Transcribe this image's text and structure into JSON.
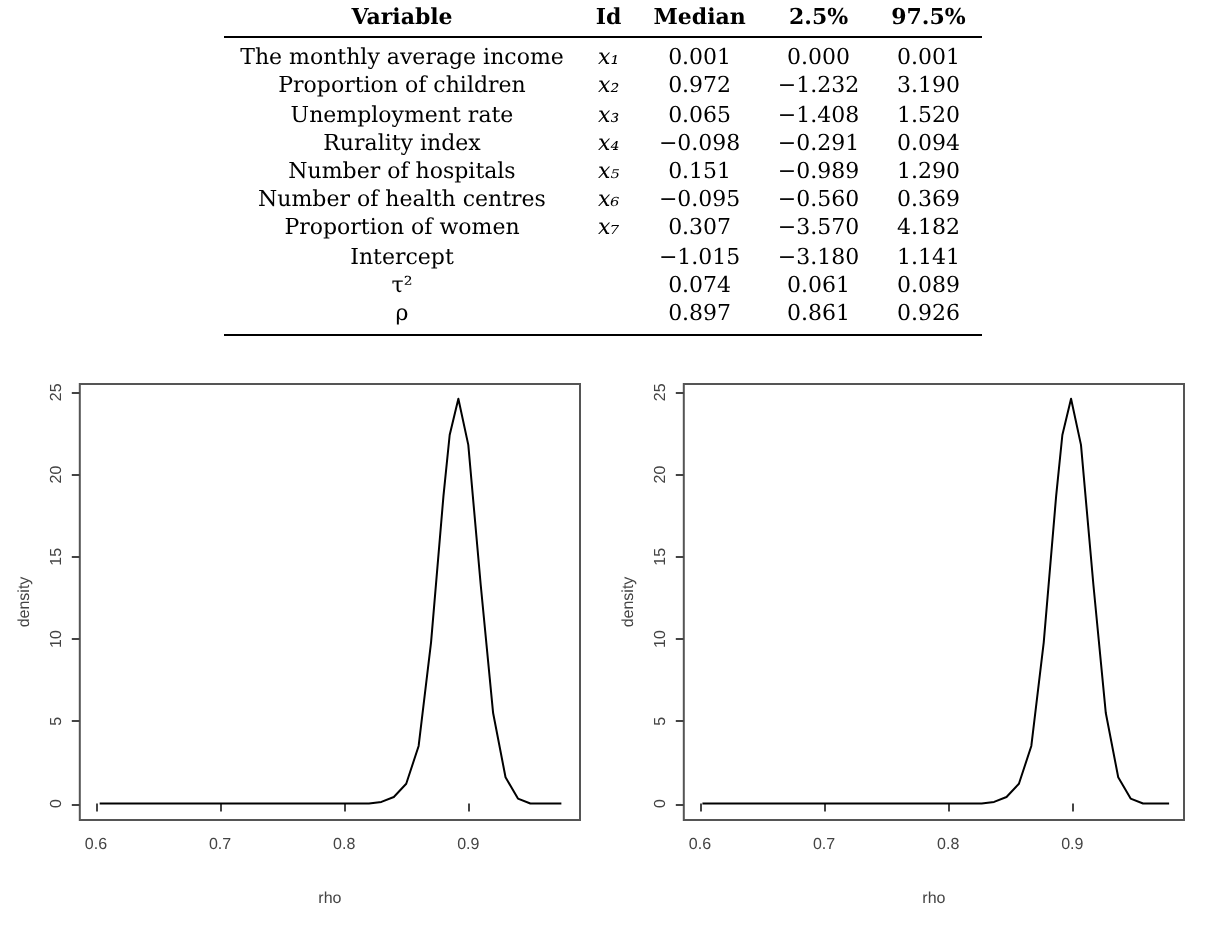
{
  "chart_data": [
    {
      "type": "other",
      "categories": [
        "Variable",
        "Id",
        "Median",
        "2.5%",
        "97.5%"
      ],
      "y_categories": [
        "The monthly average income",
        "Proportion of children",
        "Unemployment rate",
        "Rurality index",
        "Number of hospitals",
        "Number of health centres",
        "Proportion of women",
        "Intercept",
        "τ²",
        "ρ"
      ],
      "cell_labels": [
        [
          "x₁",
          "0.001",
          "0.000",
          "0.001"
        ],
        [
          "x₂",
          "0.972",
          "−1.232",
          "3.190"
        ],
        [
          "x₃",
          "0.065",
          "−1.408",
          "1.520"
        ],
        [
          "x₄",
          "−0.098",
          "−0.291",
          "0.094"
        ],
        [
          "x₅",
          "0.151",
          "−0.989",
          "1.290"
        ],
        [
          "x₆",
          "−0.095",
          "−0.560",
          "0.369"
        ],
        [
          "x₇",
          "0.307",
          "−3.570",
          "4.182"
        ],
        [
          null,
          "−1.015",
          "−3.180",
          "1.141"
        ],
        [
          null,
          "0.074",
          "0.061",
          "0.089"
        ],
        [
          null,
          "0.897",
          "0.861",
          "0.926"
        ]
      ]
    },
    {
      "type": "line",
      "xlabel": "rho",
      "ylabel": "density",
      "xlim": [
        0.587,
        0.99
      ],
      "xticks": [
        0.6,
        0.7,
        0.8,
        0.9
      ],
      "ylim": [
        -1,
        25.5
      ],
      "yticks": [
        0,
        5,
        10,
        15,
        20,
        25
      ],
      "marker": "none",
      "grid": false,
      "series": [
        {
          "color": "#000000",
          "x": [
            0.603,
            0.7,
            0.8,
            0.82,
            0.83,
            0.84,
            0.85,
            0.86,
            0.87,
            0.88,
            0.885,
            0.892,
            0.9,
            0.91,
            0.92,
            0.93,
            0.94,
            0.95,
            0.975
          ],
          "values": [
            0,
            0,
            0,
            0,
            0.1,
            0.4,
            1.2,
            3.5,
            9.8,
            18.7,
            22.4,
            24.6,
            21.8,
            13.3,
            5.5,
            1.6,
            0.3,
            0,
            0
          ]
        }
      ]
    },
    {
      "type": "line",
      "xlabel": "rho",
      "ylabel": "density",
      "xlim": [
        0.587,
        0.99
      ],
      "xticks": [
        0.6,
        0.7,
        0.8,
        0.9
      ],
      "ylim": [
        -1,
        25.5
      ],
      "yticks": [
        0,
        5,
        10,
        15,
        20,
        25
      ],
      "marker": "none",
      "grid": false,
      "series": [
        {
          "color": "#000000",
          "x": [
            0.602,
            0.7,
            0.8,
            0.827,
            0.837,
            0.847,
            0.857,
            0.867,
            0.877,
            0.887,
            0.892,
            0.899,
            0.907,
            0.917,
            0.927,
            0.937,
            0.947,
            0.957,
            0.978
          ],
          "values": [
            0,
            0,
            0,
            0,
            0.1,
            0.4,
            1.2,
            3.5,
            9.8,
            18.7,
            22.4,
            24.6,
            21.8,
            13.3,
            5.5,
            1.6,
            0.3,
            0,
            0
          ]
        }
      ]
    }
  ]
}
